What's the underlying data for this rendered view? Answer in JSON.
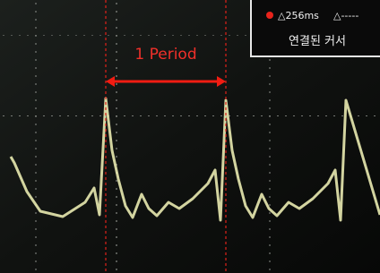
{
  "screen": {
    "annotation": "1 Period",
    "cursor_box": {
      "delta": "△256ms",
      "delta2": "△-----",
      "caption": "연결된 커서"
    }
  }
}
